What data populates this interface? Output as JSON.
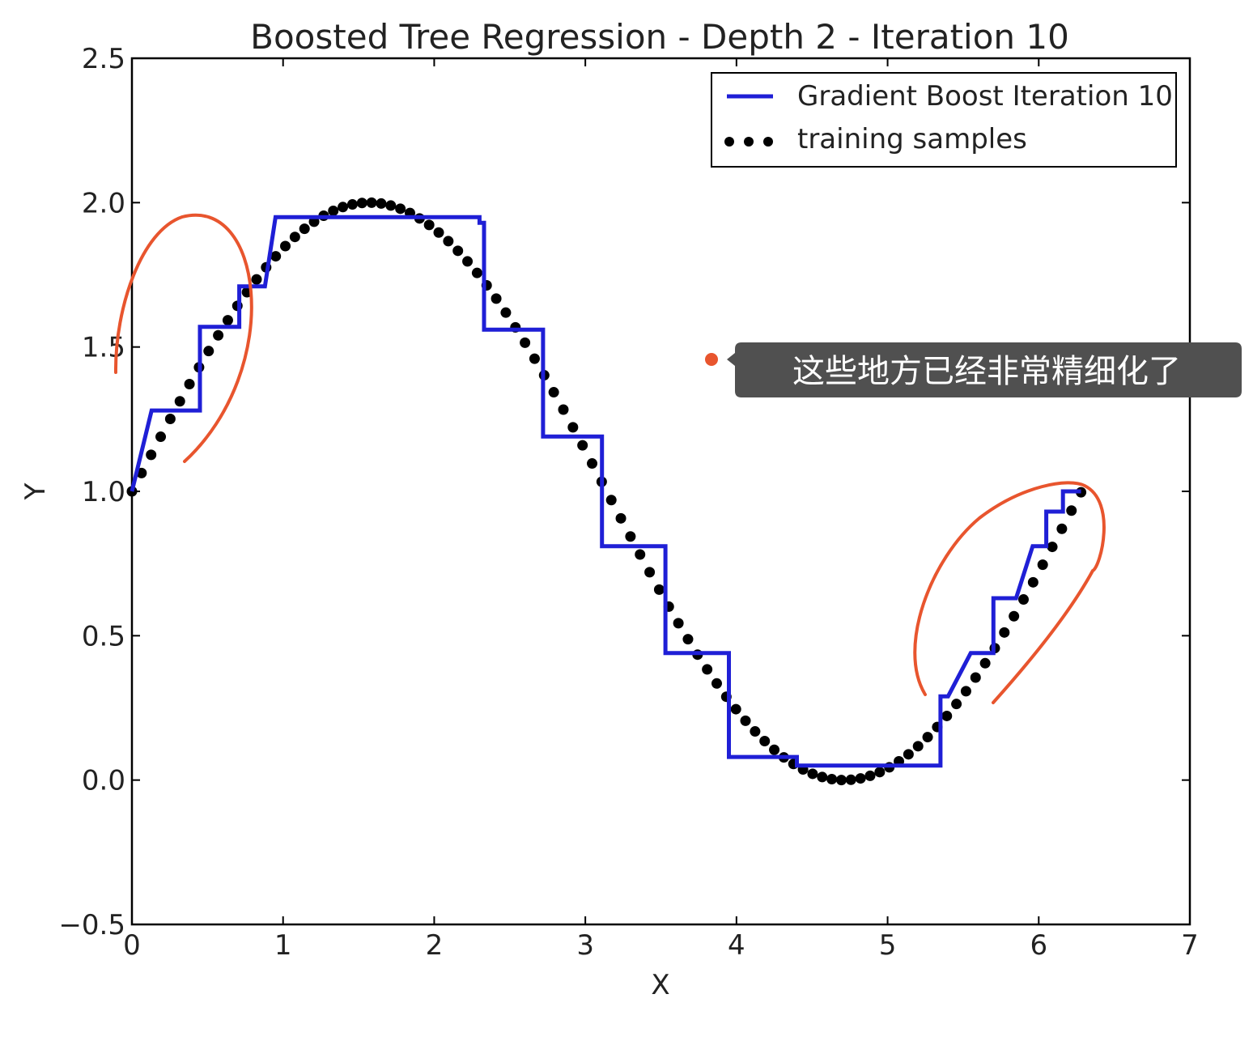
{
  "chart_data": {
    "type": "line",
    "title": "Boosted Tree Regression - Depth 2 - Iteration 10",
    "xlabel": "X",
    "ylabel": "Y",
    "xlim": [
      0,
      7
    ],
    "ylim": [
      -0.5,
      2.5
    ],
    "xticks": [
      "0",
      "1",
      "2",
      "3",
      "4",
      "5",
      "6",
      "7"
    ],
    "xtick_values": [
      0,
      1,
      2,
      3,
      4,
      5,
      6,
      7
    ],
    "yticks": [
      "−0.5",
      "0.0",
      "0.5",
      "1.0",
      "1.5",
      "2.0",
      "2.5"
    ],
    "ytick_values": [
      -0.5,
      0,
      0.5,
      1.0,
      1.5,
      2.0,
      2.5
    ],
    "grid": false,
    "legend_position": "top-right",
    "series": [
      {
        "name": "Gradient Boost Iteration 10",
        "kind": "step",
        "color": "#1f1fd6",
        "x": [
          0,
          0.13,
          0.13,
          0.45,
          0.45,
          0.71,
          0.71,
          0.88,
          0.88,
          0.95,
          0.95,
          2.3,
          2.3,
          2.33,
          2.33,
          2.72,
          2.72,
          3.11,
          3.11,
          3.17,
          3.17,
          3.53,
          3.53,
          3.95,
          3.95,
          4.4,
          4.4,
          5.35,
          5.35,
          5.4,
          5.4,
          5.55,
          5.55,
          5.7,
          5.7,
          5.85,
          5.85,
          5.96,
          5.96,
          6.05,
          6.05,
          6.16,
          6.16,
          6.28
        ],
        "y": [
          1.0,
          1.28,
          1.28,
          1.28,
          1.57,
          1.57,
          1.71,
          1.71,
          1.71,
          1.95,
          1.95,
          1.95,
          1.93,
          1.93,
          1.56,
          1.56,
          1.19,
          1.19,
          0.81,
          0.81,
          0.81,
          0.81,
          0.44,
          0.44,
          0.08,
          0.08,
          0.05,
          0.05,
          0.29,
          0.29,
          0.29,
          0.44,
          0.44,
          0.44,
          0.63,
          0.63,
          0.63,
          0.81,
          0.81,
          0.81,
          0.93,
          0.93,
          1.0,
          1.0
        ]
      },
      {
        "name": "training samples",
        "kind": "scatter",
        "color": "#000000",
        "function": "1 + sin(x)",
        "x_start": 0,
        "x_end": 6.28,
        "num_points": 100
      }
    ],
    "annotations": [
      {
        "kind": "callout",
        "text": "这些地方已经非常精细化了",
        "color": "#505050",
        "marker_color": "#e8552e"
      },
      {
        "kind": "freehand-circle",
        "color": "#e8552e",
        "region": "left rising segment"
      },
      {
        "kind": "freehand-circle",
        "color": "#e8552e",
        "region": "right rising segment"
      }
    ]
  }
}
